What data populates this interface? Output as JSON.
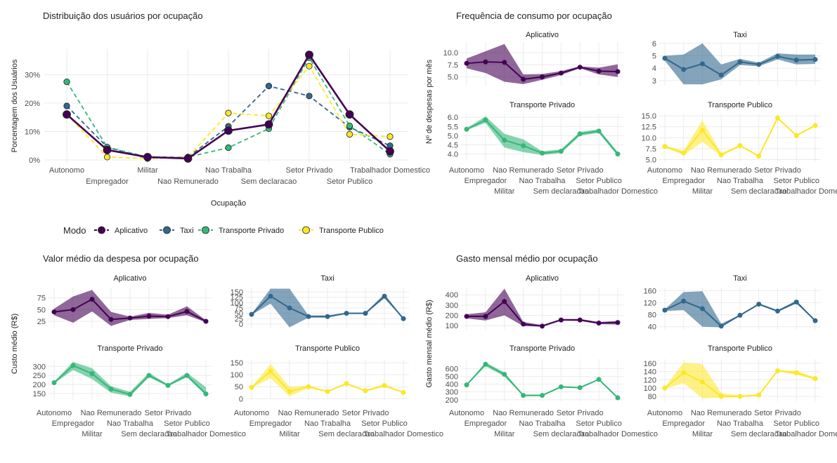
{
  "colors": {
    "Aplicativo": "#440154",
    "Taxi": "#31688E",
    "Transporte Privado": "#35B779",
    "Transporte Publico": "#FDE725",
    "grid": "#EBEBEB",
    "text": "#222222",
    "tick": "#4D4D4D"
  },
  "legend": {
    "title": "Modo",
    "items": [
      "Aplicativo",
      "Taxi",
      "Transporte Privado",
      "Transporte Publico"
    ]
  },
  "occupations": [
    "Autonomo",
    "Empregador",
    "Militar",
    "Nao Remunerado",
    "Nao Trabalha",
    "Sem declaracao",
    "Setor Privado",
    "Setor Publico",
    "Trabalhador Domestico"
  ],
  "chart_data": [
    {
      "id": "dist",
      "type": "line",
      "title": "Distribuição dos usuários por ocupação",
      "xlabel": "Ocupação",
      "ylabel": "Porcentagem dos Usuários",
      "ylim": [
        -0.01,
        0.39
      ],
      "yticks": [
        0,
        0.1,
        0.2,
        0.3
      ],
      "yticklabels": [
        "0%",
        "10%",
        "20%",
        "30%"
      ],
      "categories": [
        "Autonomo",
        "Empregador",
        "Militar",
        "Nao Remunerado",
        "Nao Trabalha",
        "Sem declaracao",
        "Setor Privado",
        "Setor Publico",
        "Trabalhador Domestico"
      ],
      "series": [
        {
          "name": "Aplicativo",
          "values": [
            0.16,
            0.035,
            0.01,
            0.005,
            0.103,
            0.125,
            0.37,
            0.16,
            0.03
          ]
        },
        {
          "name": "Taxi",
          "values": [
            0.19,
            0.045,
            0.005,
            0.01,
            0.118,
            0.26,
            0.225,
            0.115,
            0.05
          ]
        },
        {
          "name": "Transporte Privado",
          "values": [
            0.275,
            0.045,
            0.01,
            0.01,
            0.043,
            0.11,
            0.36,
            0.12,
            0.02
          ]
        },
        {
          "name": "Transporte Publico",
          "values": [
            0.16,
            0.01,
            0.005,
            0.01,
            0.165,
            0.155,
            0.33,
            0.09,
            0.082
          ]
        }
      ]
    },
    {
      "id": "freq",
      "type": "line",
      "title": "Frequência de consumo por ocupação",
      "ylabel": "Nº de despesas por mês",
      "categories": [
        "Autonomo",
        "Empregador",
        "Militar",
        "Nao Remunerado",
        "Nao Trabalha",
        "Sem declaracao",
        "Setor Privado",
        "Setor Publico",
        "Trabalhador Domestico"
      ],
      "panels": [
        {
          "name": "Aplicativo",
          "ylim": [
            3.2,
            12.2
          ],
          "yticks": [
            5,
            7.5,
            10
          ],
          "yticklabels": [
            "5.0",
            "7.5",
            "10.0"
          ],
          "values": [
            7.8,
            8.1,
            8.0,
            4.5,
            5.0,
            5.8,
            7.0,
            6.2,
            6.1
          ],
          "lower": [
            6.8,
            5.8,
            4.0,
            3.5,
            4.4,
            5.4,
            6.8,
            5.5,
            5.0
          ],
          "upper": [
            8.8,
            10.3,
            11.8,
            5.5,
            5.6,
            6.2,
            7.2,
            6.9,
            7.6
          ]
        },
        {
          "name": "Taxi",
          "ylim": [
            2.6,
            6.1
          ],
          "yticks": [
            3,
            4,
            5,
            6
          ],
          "yticklabels": [
            "3",
            "4",
            "5",
            "6"
          ],
          "values": [
            4.8,
            3.9,
            4.35,
            3.45,
            4.5,
            4.3,
            4.95,
            4.65,
            4.7
          ],
          "lower": [
            4.6,
            2.7,
            2.7,
            3.1,
            4.25,
            4.15,
            4.7,
            4.3,
            4.35
          ],
          "upper": [
            5.0,
            5.1,
            6.0,
            4.3,
            4.75,
            4.45,
            5.2,
            5.1,
            5.1
          ]
        },
        {
          "name": "Transporte Privado",
          "ylim": [
            3.6,
            6.2
          ],
          "yticks": [
            4,
            4.5,
            5,
            5.5,
            6
          ],
          "yticklabels": [
            "4.0",
            "4.5",
            "5.0",
            "5.5",
            "6.0"
          ],
          "values": [
            5.35,
            5.85,
            4.75,
            4.45,
            4.05,
            4.15,
            5.1,
            5.25,
            4.0
          ],
          "lower": [
            5.3,
            5.7,
            4.35,
            4.1,
            3.95,
            4.05,
            5.0,
            5.15,
            3.9
          ],
          "upper": [
            5.4,
            6.05,
            5.1,
            4.8,
            4.15,
            4.25,
            5.2,
            5.35,
            4.1
          ]
        },
        {
          "name": "Transporte Publico",
          "ylim": [
            4.6,
            15.5
          ],
          "yticks": [
            5,
            7.5,
            10,
            12.5,
            15
          ],
          "yticklabels": [
            "5.0",
            "7.5",
            "10.0",
            "12.5",
            "15.0"
          ],
          "values": [
            8.0,
            6.5,
            11.7,
            6.1,
            8.2,
            5.8,
            14.5,
            10.5,
            12.8
          ],
          "lower": [
            7.8,
            6.0,
            9.0,
            5.8,
            8.0,
            5.7,
            14.4,
            10.3,
            12.6
          ],
          "upper": [
            8.2,
            7.0,
            14.0,
            6.4,
            8.4,
            5.9,
            14.6,
            10.7,
            13.0
          ]
        }
      ]
    },
    {
      "id": "valor",
      "type": "line",
      "title": "Valor médio da despesa por ocupação",
      "ylabel": "Custo médio (R$)",
      "categories": [
        "Autonomo",
        "Empregador",
        "Militar",
        "Nao Remunerado",
        "Nao Trabalha",
        "Sem declaracao",
        "Setor Privado",
        "Setor Publico",
        "Trabalhador Domestico"
      ],
      "panels": [
        {
          "name": "Aplicativo",
          "ylim": [
            10,
            97
          ],
          "yticks": [
            25,
            50,
            75
          ],
          "yticklabels": [
            "25",
            "50",
            "75"
          ],
          "values": [
            45,
            50,
            72,
            29,
            32,
            36,
            35,
            46,
            25
          ],
          "lower": [
            38,
            22,
            46,
            15,
            28,
            30,
            32,
            38,
            23
          ],
          "upper": [
            52,
            78,
            92,
            45,
            35,
            43,
            39,
            57,
            27
          ]
        },
        {
          "name": "Taxi",
          "ylim": [
            -20,
            170
          ],
          "yticks": [
            0,
            25,
            50,
            75,
            100,
            125,
            150
          ],
          "yticklabels": [
            "0",
            "25",
            "50",
            "75",
            "100",
            "125",
            "150"
          ],
          "values": [
            45,
            130,
            75,
            35,
            35,
            50,
            50,
            130,
            25
          ],
          "lower": [
            43,
            95,
            -15,
            30,
            30,
            47,
            47,
            120,
            23
          ],
          "upper": [
            47,
            165,
            165,
            40,
            40,
            53,
            53,
            140,
            27
          ]
        },
        {
          "name": "Transporte Privado",
          "ylim": [
            115,
            340
          ],
          "yticks": [
            150,
            200,
            250,
            300
          ],
          "yticklabels": [
            "150",
            "200",
            "250",
            "300"
          ],
          "values": [
            210,
            305,
            260,
            175,
            145,
            250,
            195,
            250,
            148
          ],
          "lower": [
            205,
            280,
            230,
            155,
            135,
            240,
            190,
            240,
            140
          ],
          "upper": [
            215,
            325,
            290,
            190,
            160,
            265,
            200,
            265,
            185
          ]
        },
        {
          "name": "Transporte Publico",
          "ylim": [
            -5,
            165
          ],
          "yticks": [
            0,
            50,
            100,
            150
          ],
          "yticklabels": [
            "0",
            "50",
            "100",
            "150"
          ],
          "values": [
            47,
            115,
            30,
            50,
            30,
            63,
            33,
            55,
            26
          ],
          "lower": [
            45,
            85,
            10,
            45,
            28,
            60,
            30,
            50,
            24
          ],
          "upper": [
            49,
            145,
            48,
            55,
            32,
            66,
            36,
            60,
            28
          ]
        }
      ]
    },
    {
      "id": "gasto",
      "type": "line",
      "title": "Gasto mensal médio por ocupação",
      "ylabel": "Gasto mensal médio (R$)",
      "categories": [
        "Autonomo",
        "Empregador",
        "Militar",
        "Nao Remunerado",
        "Nao Trabalha",
        "Sem declaracao",
        "Setor Privado",
        "Setor Publico",
        "Trabalhador Domestico"
      ],
      "panels": [
        {
          "name": "Aplicativo",
          "ylim": [
            60,
            470
          ],
          "yticks": [
            100,
            200,
            300,
            400
          ],
          "yticklabels": [
            "100",
            "200",
            "300",
            "400"
          ],
          "values": [
            190,
            190,
            335,
            115,
            95,
            155,
            155,
            125,
            130
          ],
          "lower": [
            170,
            150,
            200,
            95,
            90,
            150,
            145,
            115,
            110
          ],
          "upper": [
            210,
            230,
            460,
            135,
            105,
            165,
            165,
            135,
            145
          ]
        },
        {
          "name": "Taxi",
          "ylim": [
            30,
            170
          ],
          "yticks": [
            40,
            80,
            120,
            160
          ],
          "yticklabels": [
            "40",
            "80",
            "120",
            "160"
          ],
          "values": [
            95,
            125,
            100,
            42,
            78,
            115,
            92,
            122,
            60
          ],
          "lower": [
            92,
            95,
            40,
            38,
            76,
            112,
            89,
            117,
            58
          ],
          "upper": [
            98,
            155,
            158,
            50,
            80,
            118,
            95,
            127,
            62
          ]
        },
        {
          "name": "Transporte Privado",
          "ylim": [
            180,
            720
          ],
          "yticks": [
            200,
            300,
            400,
            500,
            600
          ],
          "yticklabels": [
            "200",
            "300",
            "400",
            "500",
            "600"
          ],
          "values": [
            390,
            655,
            525,
            255,
            255,
            365,
            355,
            460,
            225
          ],
          "lower": [
            385,
            630,
            500,
            245,
            245,
            360,
            350,
            455,
            220
          ],
          "upper": [
            395,
            680,
            550,
            265,
            265,
            370,
            360,
            465,
            230
          ]
        },
        {
          "name": "Transporte Publico",
          "ylim": [
            68,
            170
          ],
          "yticks": [
            80,
            100,
            120,
            140,
            160
          ],
          "yticklabels": [
            "80",
            "100",
            "120",
            "140",
            "160"
          ],
          "values": [
            100,
            137,
            115,
            80,
            80,
            83,
            142,
            137,
            123
          ],
          "lower": [
            98,
            112,
            75,
            77,
            78,
            81,
            141,
            132,
            121
          ],
          "upper": [
            102,
            162,
            158,
            88,
            82,
            85,
            143,
            142,
            125
          ]
        }
      ]
    }
  ]
}
